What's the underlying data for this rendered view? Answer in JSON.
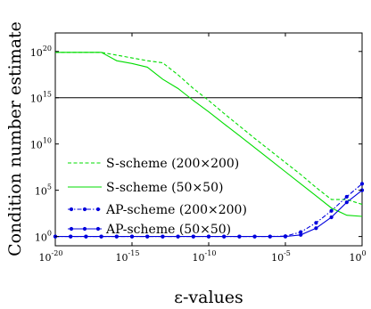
{
  "chart_data": {
    "type": "line",
    "xlabel": "ε-values",
    "ylabel": "Condition number estimate",
    "xscale": "log",
    "yscale": "log",
    "xlim": [
      1e-20,
      1
    ],
    "ylim": [
      0.1,
      1e+22
    ],
    "x_ticks": [
      {
        "base": "10",
        "exp": "-20",
        "value": 1e-20
      },
      {
        "base": "10",
        "exp": "-15",
        "value": 1e-15
      },
      {
        "base": "10",
        "exp": "-10",
        "value": 1e-10
      },
      {
        "base": "10",
        "exp": "-5",
        "value": 1e-05
      },
      {
        "base": "10",
        "exp": "0",
        "value": 1
      }
    ],
    "y_ticks": [
      {
        "base": "10",
        "exp": "0",
        "value": 1
      },
      {
        "base": "10",
        "exp": "5",
        "value": 100000.0
      },
      {
        "base": "10",
        "exp": "10",
        "value": 10000000000.0
      },
      {
        "base": "10",
        "exp": "15",
        "value": 1000000000000000.0
      },
      {
        "base": "10",
        "exp": "20",
        "value": 1e+20
      }
    ],
    "grid": false,
    "legend_position": "bottom-left",
    "reference_line": {
      "y": 1000000000000000.0,
      "color": "#000000"
    },
    "series": [
      {
        "name": "S-scheme (200×200)",
        "color": "#00dd00",
        "style": "dashed",
        "marker": "none",
        "x": [
          1e-20,
          1e-17,
          1e-16,
          1e-15,
          1e-14,
          1e-13,
          1e-12,
          1e-11,
          1e-10,
          1e-09,
          1e-08,
          1e-07,
          1e-06,
          1e-05,
          0.0001,
          0.001,
          0.01,
          0.1,
          1
        ],
        "y": [
          8e+19,
          8e+19,
          4e+19,
          2e+19,
          1e+19,
          6e+18,
          3e+17,
          1e+16,
          500000000000000.0,
          20000000000000.0,
          900000000000.0,
          40000000000.0,
          2000000000.0,
          100000000.0,
          5000000.0,
          200000.0,
          10000.0,
          10000.0,
          3000.0
        ]
      },
      {
        "name": "S-scheme (50×50)",
        "color": "#00dd00",
        "style": "solid",
        "marker": "none",
        "x": [
          1e-20,
          1e-17,
          1e-16,
          1e-15,
          1e-14,
          1e-13,
          1e-12,
          1e-11,
          1e-10,
          1e-09,
          1e-08,
          1e-07,
          1e-06,
          1e-05,
          0.0001,
          0.001,
          0.01,
          0.1,
          1
        ],
        "y": [
          8e+19,
          8e+19,
          1e+19,
          5e+18,
          2e+18,
          1e+17,
          1e+16,
          500000000000000.0,
          30000000000000.0,
          1500000000000.0,
          80000000000.0,
          4000000000.0,
          200000000.0,
          10000000.0,
          500000.0,
          25000.0,
          1200.0,
          200,
          150
        ]
      },
      {
        "name": "AP-scheme (200×200)",
        "color": "#0000dd",
        "style": "dashdot",
        "marker": "dot",
        "x": [
          1e-20,
          1e-19,
          1e-18,
          1e-17,
          1e-16,
          1e-15,
          1e-14,
          1e-13,
          1e-12,
          1e-11,
          1e-10,
          1e-09,
          1e-08,
          1e-07,
          1e-06,
          1e-05,
          0.0001,
          0.001,
          0.01,
          0.1,
          1
        ],
        "y": [
          1,
          1,
          1,
          1,
          1,
          1,
          1,
          1,
          1,
          1,
          1,
          1,
          1,
          1,
          1,
          1.1,
          3,
          30,
          600,
          20000.0,
          500000.0
        ]
      },
      {
        "name": "AP-scheme (50×50)",
        "color": "#0000dd",
        "style": "solid",
        "marker": "dot",
        "x": [
          1e-20,
          1e-19,
          1e-18,
          1e-17,
          1e-16,
          1e-15,
          1e-14,
          1e-13,
          1e-12,
          1e-11,
          1e-10,
          1e-09,
          1e-08,
          1e-07,
          1e-06,
          1e-05,
          0.0001,
          0.001,
          0.01,
          0.1,
          1
        ],
        "y": [
          1,
          1,
          1,
          1,
          1,
          1,
          1,
          1,
          1,
          1,
          1,
          1,
          1,
          1,
          1,
          1,
          1.5,
          8,
          120,
          5000.0,
          100000.0
        ]
      }
    ]
  }
}
